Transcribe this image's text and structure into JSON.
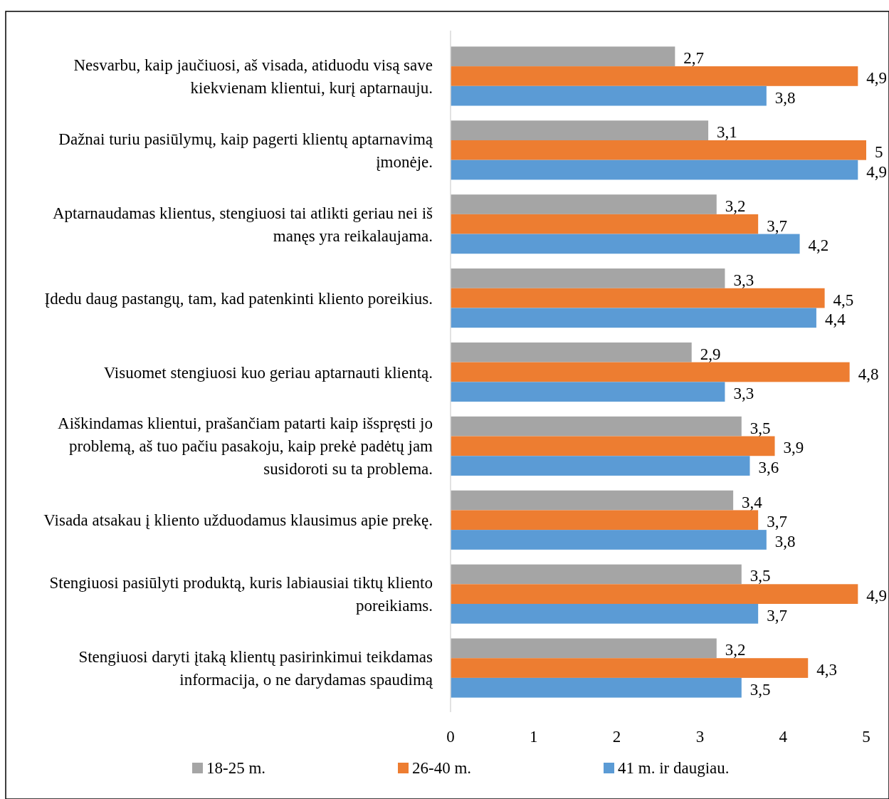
{
  "chart_data": {
    "type": "bar",
    "orientation": "horizontal",
    "categories": [
      "Nesvarbu, kaip jaučiuosi, aš visada, atiduodu visą save kiekvienam klientui, kurį aptarnauju.",
      "Dažnai turiu pasiūlymų, kaip pagerti klientų aptarnavimą įmonėje.",
      "Aptarnaudamas klientus, stengiuosi tai atlikti geriau nei iš manęs yra reikalaujama.",
      "Įdedu daug pastangų, tam, kad patenkinti kliento poreikius.",
      "Visuomet stengiuosi kuo geriau aptarnauti klientą.",
      "Aiškindamas klientui, prašančiam patarti kaip išspręsti jo problemą, aš tuo pačiu pasakoju, kaip prekė padėtų jam susidoroti su ta problema.",
      "Visada atsakau į kliento užduodamus klausimus apie prekę.",
      "Stengiuosi pasiūlyti produktą, kuris labiausiai tiktų kliento poreikiams.",
      "Stengiuosi daryti įtaką klientų pasirinkimui teikdamas informacija, o ne darydamas spaudimą"
    ],
    "series": [
      {
        "name": "18-25 m.",
        "color": "#a5a5a5",
        "values": [
          2.7,
          3.1,
          3.2,
          3.3,
          2.9,
          3.5,
          3.4,
          3.5,
          3.2
        ],
        "value_labels": [
          "2,7",
          "3,1",
          "3,2",
          "3,3",
          "2,9",
          "3,5",
          "3,4",
          "3,5",
          "3,2"
        ]
      },
      {
        "name": "26-40 m.",
        "color": "#ed7d31",
        "values": [
          4.9,
          5,
          3.7,
          4.5,
          4.8,
          3.9,
          3.7,
          4.9,
          4.3
        ],
        "value_labels": [
          "4,9",
          "5",
          "3,7",
          "4,5",
          "4,8",
          "3,9",
          "3,7",
          "4,9",
          "4,3"
        ]
      },
      {
        "name": "41 m. ir daugiau.",
        "color": "#5b9bd5",
        "values": [
          3.8,
          4.9,
          4.2,
          4.4,
          3.3,
          3.6,
          3.8,
          3.7,
          3.5
        ],
        "value_labels": [
          "3,8",
          "4,9",
          "4,2",
          "4,4",
          "3,3",
          "3,6",
          "3,8",
          "3,7",
          "3,5"
        ]
      }
    ],
    "xlim": [
      0,
      5
    ],
    "xticks": [
      0,
      1,
      2,
      3,
      4,
      5
    ],
    "grid": false,
    "legend": "bottom"
  }
}
